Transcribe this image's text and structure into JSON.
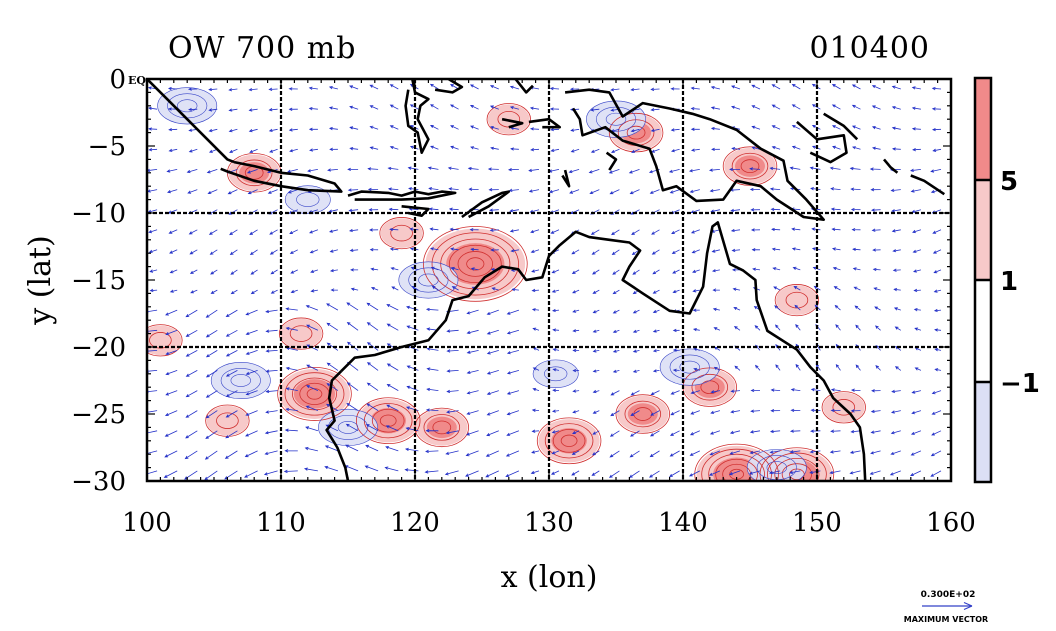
{
  "chart_data": {
    "type": "heatmap",
    "title_left": "OW 700 mb",
    "title_right": "010400",
    "xlabel": "x (lon)",
    "ylabel": "y (lat)",
    "xlim": [
      100,
      160
    ],
    "ylim": [
      -30,
      0
    ],
    "x_ticks": [
      100,
      110,
      120,
      130,
      140,
      150,
      160
    ],
    "x_tick_labels": [
      "100",
      "110",
      "120",
      "130",
      "140",
      "150",
      "160"
    ],
    "y_ticks": [
      0,
      -5,
      -10,
      -15,
      -20,
      -25,
      -30
    ],
    "y_tick_labels": [
      "0",
      "−5",
      "−10",
      "−15",
      "−20",
      "−25",
      "−30"
    ],
    "y_zero_suffix": "EQ",
    "grid_x": [
      110,
      120,
      130,
      140,
      150
    ],
    "grid_y": [
      -10,
      -20
    ],
    "grid": true,
    "colorbar": {
      "levels": [
        -1,
        1,
        5
      ],
      "level_labels": [
        "−1",
        "1",
        "5"
      ],
      "colors": [
        "#dcdff5",
        "#ffffff",
        "#f7c9c9",
        "#f08a8a"
      ]
    },
    "vector_key": {
      "value_label": "0.300E+02",
      "caption": "MAXIMUM VECTOR"
    },
    "positive_centers": [
      {
        "lon": 124.5,
        "lat": -13.8,
        "strength": 8
      },
      {
        "lon": 112.5,
        "lat": -23.5,
        "strength": 5
      },
      {
        "lon": 118.0,
        "lat": -25.5,
        "strength": 4
      },
      {
        "lon": 122.0,
        "lat": -26.0,
        "strength": 3
      },
      {
        "lon": 131.5,
        "lat": -27.0,
        "strength": 4
      },
      {
        "lon": 144.0,
        "lat": -29.5,
        "strength": 6
      },
      {
        "lon": 148.5,
        "lat": -29.5,
        "strength": 5
      },
      {
        "lon": 106.0,
        "lat": -25.5,
        "strength": 2
      },
      {
        "lon": 111.5,
        "lat": -19.0,
        "strength": 2
      },
      {
        "lon": 101.0,
        "lat": -19.5,
        "strength": 2
      },
      {
        "lon": 137.0,
        "lat": -25.0,
        "strength": 3
      },
      {
        "lon": 142.0,
        "lat": -23.0,
        "strength": 3
      },
      {
        "lon": 148.5,
        "lat": -16.5,
        "strength": 2
      },
      {
        "lon": 119.0,
        "lat": -11.5,
        "strength": 2
      },
      {
        "lon": 127.0,
        "lat": -3.0,
        "strength": 2
      },
      {
        "lon": 136.5,
        "lat": -4.0,
        "strength": 3
      },
      {
        "lon": 145.0,
        "lat": -6.5,
        "strength": 3
      },
      {
        "lon": 108.0,
        "lat": -7.0,
        "strength": 3
      },
      {
        "lon": 152.0,
        "lat": -24.5,
        "strength": 2
      }
    ],
    "negative_centers": [
      {
        "lon": 121.0,
        "lat": -15.0,
        "strength": 2
      },
      {
        "lon": 107.0,
        "lat": -22.5,
        "strength": 2
      },
      {
        "lon": 140.5,
        "lat": -21.5,
        "strength": 2
      },
      {
        "lon": 147.0,
        "lat": -29.0,
        "strength": 2
      },
      {
        "lon": 103.0,
        "lat": -2.0,
        "strength": 2
      },
      {
        "lon": 135.0,
        "lat": -3.0,
        "strength": 2
      },
      {
        "lon": 112.0,
        "lat": -9.0,
        "strength": 1
      },
      {
        "lon": 130.5,
        "lat": -22.0,
        "strength": 1
      },
      {
        "lon": 115.0,
        "lat": -26.0,
        "strength": 2
      }
    ],
    "coastlines": [
      [
        [
          100,
          0
        ],
        [
          101.5,
          -1.5
        ],
        [
          103,
          -3
        ],
        [
          104.5,
          -4.5
        ],
        [
          106,
          -6
        ],
        [
          106.5,
          -6.2
        ]
      ],
      [
        [
          106.5,
          -6.2
        ],
        [
          108,
          -6.5
        ],
        [
          110,
          -7
        ],
        [
          112,
          -7.2
        ],
        [
          114,
          -7.8
        ],
        [
          114.5,
          -8.4
        ],
        [
          112,
          -8.3
        ],
        [
          110,
          -8
        ],
        [
          108,
          -7.6
        ],
        [
          106,
          -6.9
        ],
        [
          105.5,
          -6.7
        ]
      ],
      [
        [
          115,
          -8.7
        ],
        [
          116,
          -8.4
        ],
        [
          118,
          -8.5
        ],
        [
          119,
          -8.7
        ],
        [
          120,
          -8.4
        ],
        [
          121,
          -8.6
        ],
        [
          122,
          -8.4
        ],
        [
          123,
          -8.5
        ],
        [
          121,
          -8.9
        ],
        [
          119,
          -9
        ],
        [
          117,
          -9
        ],
        [
          115.5,
          -9
        ]
      ],
      [
        [
          119,
          -9.5
        ],
        [
          121,
          -9.7
        ],
        [
          120.5,
          -10.2
        ],
        [
          119.5,
          -10
        ]
      ],
      [
        [
          123.5,
          -10.3
        ],
        [
          125,
          -9.2
        ],
        [
          126.5,
          -8.5
        ],
        [
          127,
          -8.4
        ],
        [
          125.5,
          -9.5
        ],
        [
          124,
          -10.3
        ]
      ],
      [
        [
          114.5,
          -21.8
        ],
        [
          115.5,
          -20.8
        ],
        [
          117,
          -20.6
        ],
        [
          119,
          -20
        ],
        [
          121,
          -19.5
        ],
        [
          122.3,
          -18
        ],
        [
          122.8,
          -16.5
        ],
        [
          124,
          -16.2
        ],
        [
          125.2,
          -14.8
        ],
        [
          126.5,
          -14
        ],
        [
          127.7,
          -14.2
        ],
        [
          128.3,
          -15
        ],
        [
          129.5,
          -14.8
        ],
        [
          130,
          -13.2
        ],
        [
          130.8,
          -12.4
        ],
        [
          132,
          -11.4
        ],
        [
          133,
          -11.8
        ],
        [
          134.5,
          -12
        ],
        [
          136,
          -12.2
        ],
        [
          136.8,
          -12.8
        ],
        [
          136,
          -14
        ],
        [
          135.5,
          -15
        ],
        [
          137,
          -16
        ],
        [
          139,
          -17.3
        ],
        [
          140.5,
          -17.5
        ],
        [
          141.5,
          -15.5
        ],
        [
          141.8,
          -13
        ],
        [
          142.2,
          -11
        ],
        [
          142.6,
          -10.7
        ],
        [
          143.5,
          -13.8
        ],
        [
          144.5,
          -14.3
        ],
        [
          145.4,
          -15
        ],
        [
          145.5,
          -16.5
        ],
        [
          146.3,
          -18.8
        ],
        [
          148.5,
          -20.2
        ],
        [
          149.5,
          -21.5
        ],
        [
          150.5,
          -22.5
        ],
        [
          151.2,
          -23.8
        ],
        [
          152.5,
          -25
        ],
        [
          153.2,
          -26
        ],
        [
          153.5,
          -28
        ],
        [
          153.6,
          -30
        ]
      ],
      [
        [
          114.5,
          -21.8
        ],
        [
          113.8,
          -22.5
        ],
        [
          113.6,
          -23.8
        ],
        [
          114,
          -25.5
        ],
        [
          113.4,
          -26.2
        ],
        [
          114.2,
          -27.5
        ],
        [
          114.8,
          -29
        ],
        [
          115,
          -30
        ]
      ],
      [
        [
          119.8,
          0
        ],
        [
          120,
          -1
        ],
        [
          121,
          -1.5
        ],
        [
          120.4,
          -2
        ],
        [
          120.2,
          -3
        ],
        [
          121,
          -4.5
        ],
        [
          120.5,
          -5.5
        ],
        [
          120.2,
          -4
        ],
        [
          119.5,
          -3.5
        ],
        [
          119.3,
          -2
        ],
        [
          119.5,
          -0.8
        ]
      ],
      [
        [
          122.5,
          0
        ],
        [
          123.5,
          -0.6
        ],
        [
          122.8,
          -1
        ],
        [
          121.5,
          -0.8
        ]
      ],
      [
        [
          127.5,
          0
        ],
        [
          128.3,
          -1
        ],
        [
          128.8,
          -0.5
        ]
      ],
      [
        [
          126.5,
          -3
        ],
        [
          128,
          -3.3
        ],
        [
          127,
          -3.6
        ]
      ],
      [
        [
          128.5,
          -3.2
        ],
        [
          130,
          -3
        ],
        [
          130.8,
          -3.6
        ],
        [
          129.5,
          -3.6
        ]
      ],
      [
        [
          131.2,
          -1
        ],
        [
          133,
          -0.8
        ],
        [
          134.5,
          -1
        ],
        [
          135.5,
          -2.8
        ],
        [
          137,
          -1.8
        ],
        [
          139,
          -2.2
        ],
        [
          140.7,
          -2.6
        ],
        [
          142,
          -3
        ],
        [
          144,
          -3.8
        ],
        [
          145.8,
          -5.2
        ],
        [
          147.5,
          -6.1
        ],
        [
          147.8,
          -7.6
        ],
        [
          149.2,
          -9
        ],
        [
          150.5,
          -10.5
        ],
        [
          149,
          -10.3
        ],
        [
          147,
          -9
        ],
        [
          145.8,
          -8
        ],
        [
          144,
          -7.6
        ],
        [
          143,
          -9
        ],
        [
          141,
          -9.1
        ],
        [
          139.5,
          -8
        ],
        [
          138.5,
          -8.3
        ],
        [
          138,
          -6.5
        ],
        [
          137.5,
          -5.2
        ],
        [
          135.5,
          -4.6
        ],
        [
          134.2,
          -3.6
        ],
        [
          132.5,
          -4.2
        ],
        [
          132.3,
          -3
        ],
        [
          131.8,
          -2.2
        ]
      ],
      [
        [
          148.5,
          -3.2
        ],
        [
          150,
          -4.5
        ],
        [
          152,
          -4.2
        ],
        [
          152.2,
          -5.5
        ],
        [
          151,
          -6.2
        ],
        [
          149.5,
          -5.5
        ]
      ],
      [
        [
          150.5,
          -2.6
        ],
        [
          152,
          -3.5
        ],
        [
          153,
          -4.5
        ]
      ],
      [
        [
          155,
          -6
        ],
        [
          155.5,
          -6.6
        ],
        [
          156,
          -7
        ]
      ],
      [
        [
          157,
          -7.2
        ],
        [
          158,
          -7.6
        ],
        [
          159.5,
          -8.6
        ]
      ],
      [
        [
          131,
          -7.2
        ],
        [
          131.5,
          -8
        ],
        [
          131.2,
          -6.8
        ]
      ],
      [
        [
          134.3,
          -5.5
        ],
        [
          135,
          -6
        ],
        [
          134.5,
          -6.8
        ]
      ]
    ]
  }
}
